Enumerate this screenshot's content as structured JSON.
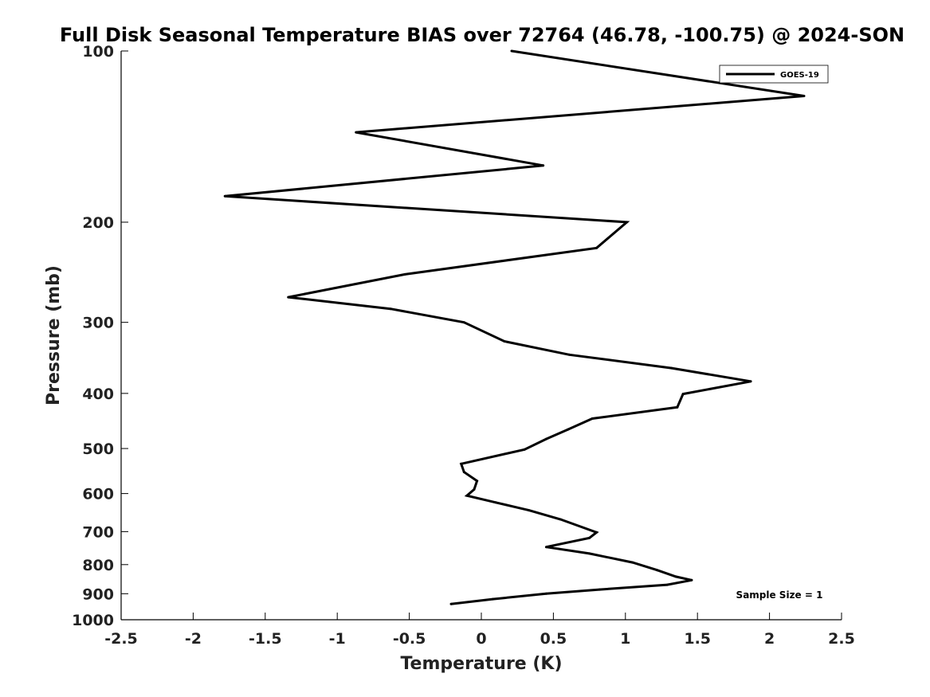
{
  "chart_data": {
    "type": "line",
    "title": "Full Disk Seasonal Temperature BIAS over 72764 (46.78, -100.75) @ 2024-SON",
    "xlabel": "Temperature (K)",
    "ylabel": "Pressure (mb)",
    "xlim": [
      -2.5,
      2.5
    ],
    "ylim": [
      100,
      1000
    ],
    "y_scale": "log",
    "y_reversed": true,
    "grid": false,
    "x_ticks": [
      -2.5,
      -2,
      -1.5,
      -1,
      -0.5,
      0,
      0.5,
      1,
      1.5,
      2,
      2.5
    ],
    "x_tick_labels": [
      "-2.5",
      "-2",
      "-1.5",
      "-1",
      "-0.5",
      "0",
      "0.5",
      "1",
      "1.5",
      "2",
      "2.5"
    ],
    "y_ticks": [
      100,
      200,
      300,
      400,
      500,
      600,
      700,
      800,
      900,
      1000
    ],
    "y_tick_labels": [
      "100",
      "200",
      "300",
      "400",
      "500",
      "600",
      "700",
      "800",
      "900",
      "1000"
    ],
    "legend_position": "top-right",
    "annotation": "Sample Size = 1",
    "series": [
      {
        "name": "GOES-19",
        "color": "#000000",
        "points": [
          {
            "t": 0.21,
            "p": 100
          },
          {
            "t": 2.24,
            "p": 120
          },
          {
            "t": -0.87,
            "p": 139
          },
          {
            "t": 0.43,
            "p": 159
          },
          {
            "t": -1.78,
            "p": 180
          },
          {
            "t": 1.01,
            "p": 200
          },
          {
            "t": 0.8,
            "p": 222
          },
          {
            "t": -0.53,
            "p": 247
          },
          {
            "t": -1.34,
            "p": 271
          },
          {
            "t": -0.63,
            "p": 284
          },
          {
            "t": -0.12,
            "p": 300
          },
          {
            "t": 0.16,
            "p": 324
          },
          {
            "t": 0.61,
            "p": 342
          },
          {
            "t": 1.32,
            "p": 361
          },
          {
            "t": 1.87,
            "p": 381
          },
          {
            "t": 1.4,
            "p": 401
          },
          {
            "t": 1.36,
            "p": 423
          },
          {
            "t": 0.77,
            "p": 443
          },
          {
            "t": 0.6,
            "p": 463
          },
          {
            "t": 0.45,
            "p": 481
          },
          {
            "t": 0.3,
            "p": 502
          },
          {
            "t": -0.14,
            "p": 532
          },
          {
            "t": -0.12,
            "p": 550
          },
          {
            "t": -0.03,
            "p": 570
          },
          {
            "t": -0.05,
            "p": 590
          },
          {
            "t": -0.1,
            "p": 605
          },
          {
            "t": 0.1,
            "p": 622
          },
          {
            "t": 0.33,
            "p": 642
          },
          {
            "t": 0.55,
            "p": 666
          },
          {
            "t": 0.8,
            "p": 702
          },
          {
            "t": 0.75,
            "p": 718
          },
          {
            "t": 0.45,
            "p": 745
          },
          {
            "t": 0.75,
            "p": 765
          },
          {
            "t": 1.05,
            "p": 793
          },
          {
            "t": 1.22,
            "p": 818
          },
          {
            "t": 1.35,
            "p": 840
          },
          {
            "t": 1.46,
            "p": 852
          },
          {
            "t": 1.29,
            "p": 868
          },
          {
            "t": 0.82,
            "p": 885
          },
          {
            "t": 0.45,
            "p": 900
          },
          {
            "t": 0.08,
            "p": 920
          },
          {
            "t": -0.21,
            "p": 938
          }
        ]
      }
    ]
  }
}
